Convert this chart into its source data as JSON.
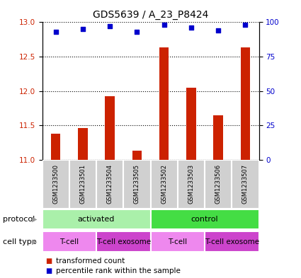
{
  "title": "GDS5639 / A_23_P8424",
  "samples": [
    "GSM1233500",
    "GSM1233501",
    "GSM1233504",
    "GSM1233505",
    "GSM1233502",
    "GSM1233503",
    "GSM1233506",
    "GSM1233507"
  ],
  "transformed_counts": [
    11.38,
    11.46,
    11.93,
    11.13,
    12.63,
    12.05,
    11.65,
    12.63
  ],
  "percentile_ranks": [
    93,
    95,
    97,
    93,
    98,
    96,
    94,
    98
  ],
  "ylim_left": [
    11,
    13
  ],
  "ylim_right": [
    0,
    100
  ],
  "yticks_left": [
    11,
    11.5,
    12,
    12.5,
    13
  ],
  "yticks_right": [
    0,
    25,
    50,
    75,
    100
  ],
  "bar_color": "#cc2200",
  "dot_color": "#0000cc",
  "protocol_groups": [
    {
      "label": "activated",
      "start": 0,
      "end": 4,
      "color": "#aaf0aa"
    },
    {
      "label": "control",
      "start": 4,
      "end": 8,
      "color": "#44dd44"
    }
  ],
  "cell_type_groups": [
    {
      "label": "T-cell",
      "start": 0,
      "end": 2,
      "color": "#ee88ee"
    },
    {
      "label": "T-cell exosome",
      "start": 2,
      "end": 4,
      "color": "#cc44cc"
    },
    {
      "label": "T-cell",
      "start": 4,
      "end": 6,
      "color": "#ee88ee"
    },
    {
      "label": "T-cell exosome",
      "start": 6,
      "end": 8,
      "color": "#cc44cc"
    }
  ],
  "legend_bar_label": "transformed count",
  "legend_dot_label": "percentile rank within the sample",
  "protocol_label": "protocol",
  "cell_type_label": "cell type",
  "sample_box_color": "#d0d0d0",
  "title_fontsize": 10,
  "tick_fontsize": 7.5,
  "sample_fontsize": 6,
  "row_fontsize": 8,
  "legend_fontsize": 7.5
}
